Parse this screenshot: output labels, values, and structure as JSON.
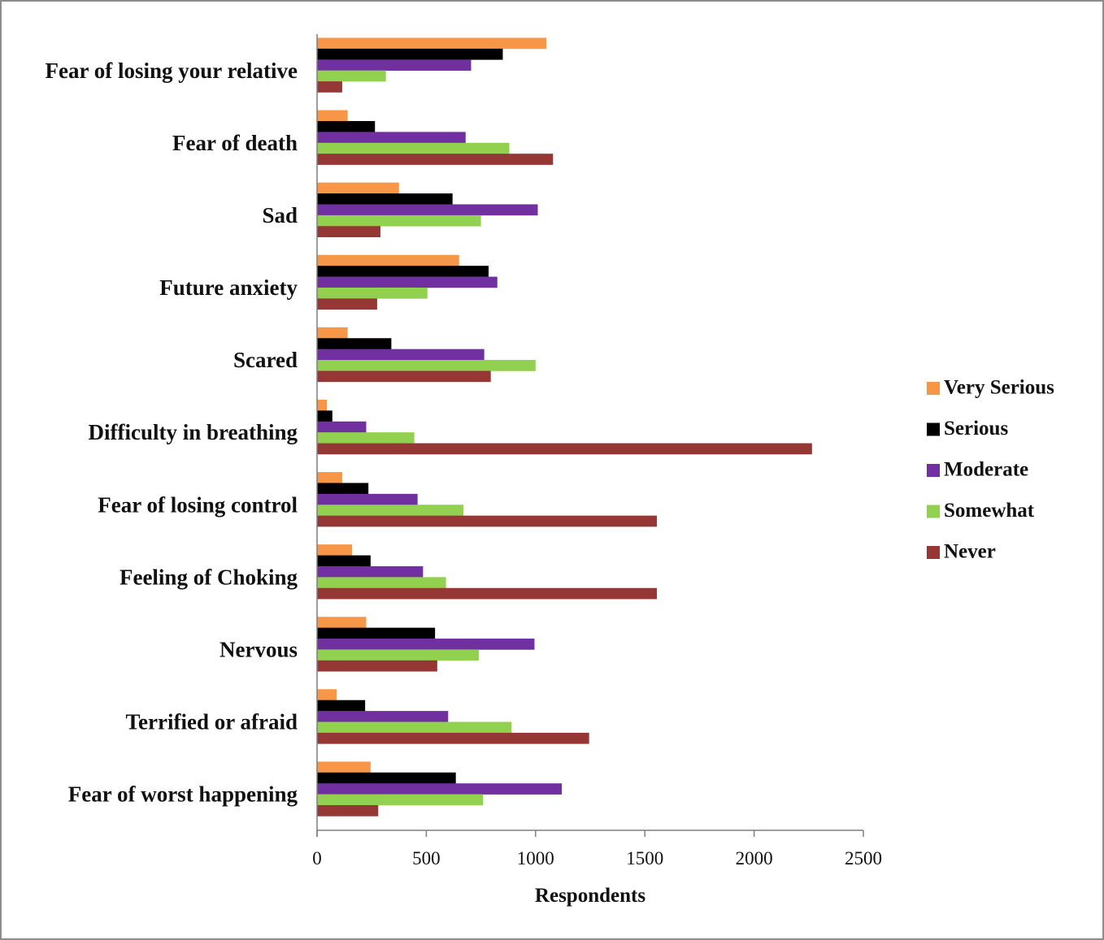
{
  "chart_data": {
    "type": "bar",
    "orientation": "horizontal",
    "title": "",
    "xlabel": "Respondents",
    "ylabel": "",
    "xlim": [
      0,
      2500
    ],
    "x_ticks": [
      "0",
      "500",
      "1000",
      "1500",
      "2000",
      "2500"
    ],
    "grid": false,
    "legend_position": "right",
    "categories": [
      "Fear of losing your relative",
      "Fear of death",
      "Sad",
      "Future anxiety",
      "Scared",
      "Difficulty in breathing",
      "Fear of losing control",
      "Feeling of Choking",
      "Nervous",
      "Terrified or afraid",
      "Fear of worst happening"
    ],
    "series": [
      {
        "name": "Very Serious",
        "color": "#F79646",
        "values": [
          1050,
          140,
          375,
          650,
          140,
          45,
          115,
          160,
          225,
          90,
          245
        ]
      },
      {
        "name": "Serious",
        "color": "#000000",
        "values": [
          850,
          265,
          620,
          785,
          340,
          70,
          235,
          245,
          540,
          220,
          635
        ]
      },
      {
        "name": "Moderate",
        "color": "#7030A0",
        "values": [
          705,
          680,
          1010,
          825,
          765,
          225,
          460,
          485,
          995,
          600,
          1120
        ]
      },
      {
        "name": "Somewhat",
        "color": "#92D050",
        "values": [
          315,
          880,
          750,
          505,
          1000,
          445,
          670,
          590,
          740,
          890,
          760
        ]
      },
      {
        "name": "Never",
        "color": "#953735",
        "values": [
          115,
          1080,
          290,
          275,
          795,
          2265,
          1555,
          1555,
          550,
          1245,
          280
        ]
      }
    ]
  }
}
